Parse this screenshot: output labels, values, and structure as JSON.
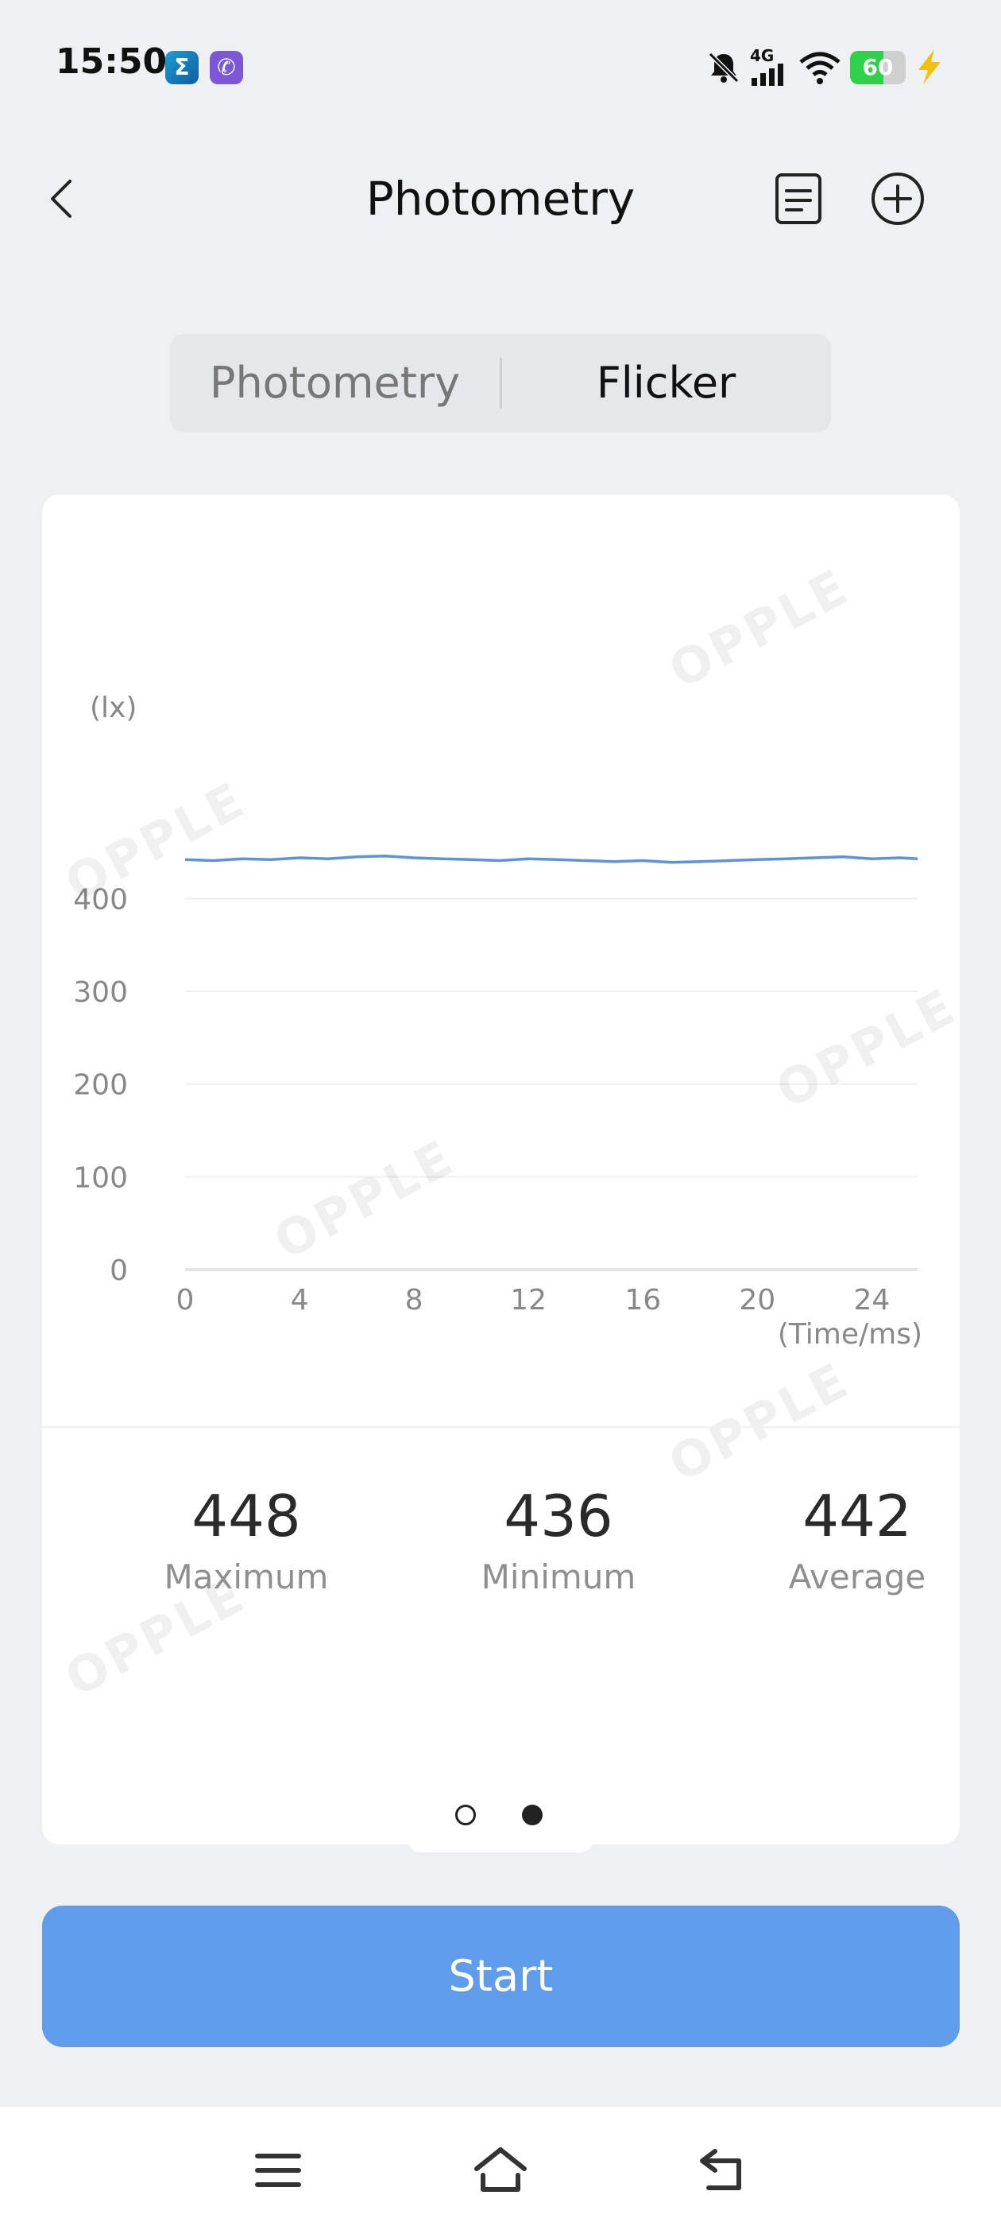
{
  "status_bar": {
    "time": "15:50",
    "apps": [
      {
        "icon": "sigma-app-icon",
        "glyph": "Σ"
      },
      {
        "icon": "viber-app-icon",
        "glyph": "✆"
      }
    ],
    "network_label": "4G",
    "battery_percent": 60,
    "battery_label": "60",
    "icons": [
      "bell-muted-icon",
      "cellular-signal-icon",
      "wifi-icon",
      "battery-icon",
      "charging-bolt-icon"
    ]
  },
  "header": {
    "title": "Photometry",
    "icons": [
      "back-chevron-icon",
      "document-list-icon",
      "add-circle-icon"
    ]
  },
  "segment": {
    "options": [
      "Photometry",
      "Flicker"
    ],
    "selected": "Flicker"
  },
  "chart_data": {
    "type": "line",
    "ylabel": "(lx)",
    "xlabel": "(Time/ms)",
    "xlim": [
      0,
      25.6
    ],
    "ylim": [
      0,
      450
    ],
    "xticks": [
      0,
      4,
      8,
      12,
      16,
      20,
      24
    ],
    "yticks": [
      0,
      100,
      200,
      300,
      400
    ],
    "grid": "horizontal",
    "line_color": "#5b93dc",
    "series": [
      {
        "x": [
          0,
          1,
          2,
          3,
          4,
          5,
          6,
          7,
          8,
          9,
          10,
          11,
          12,
          13,
          14,
          15,
          16,
          17,
          18,
          19,
          20,
          21,
          22,
          23,
          24,
          25,
          25.6
        ],
        "values": [
          442,
          441,
          443,
          442,
          444,
          443,
          445,
          446,
          444,
          443,
          442,
          441,
          443,
          442,
          441,
          440,
          441,
          439,
          440,
          441,
          442,
          443,
          444,
          445,
          443,
          444,
          443
        ]
      }
    ]
  },
  "stats": [
    {
      "value": "448",
      "label": "Maximum"
    },
    {
      "value": "436",
      "label": "Minimum"
    },
    {
      "value": "442",
      "label": "Average"
    }
  ],
  "watermark": "OPPLE",
  "pager": {
    "count": 2,
    "active": 2
  },
  "start_button": {
    "label": "Start"
  },
  "nav_bar": {
    "icons": [
      "menu-icon",
      "home-icon",
      "back-icon"
    ]
  },
  "colors": {
    "accent": "#5f9ceb",
    "background": "#eff0f2",
    "card": "#ffffff"
  }
}
